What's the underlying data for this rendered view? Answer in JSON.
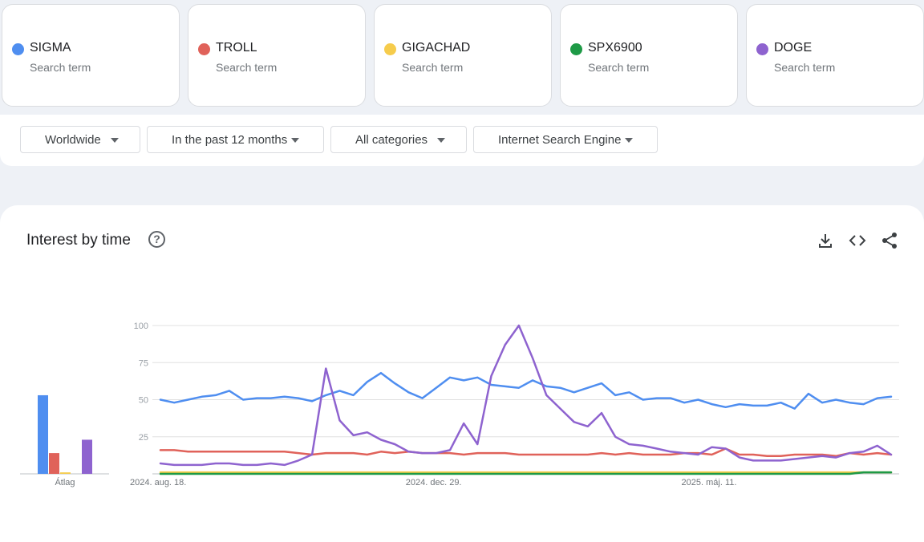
{
  "terms": [
    {
      "name": "SIGMA",
      "sub": "Search term",
      "color": "#4f8ef0"
    },
    {
      "name": "TROLL",
      "sub": "Search term",
      "color": "#e0625a"
    },
    {
      "name": "GIGACHAD",
      "sub": "Search term",
      "color": "#f6cc4c"
    },
    {
      "name": "SPX6900",
      "sub": "Search term",
      "color": "#1e9a46"
    },
    {
      "name": "DOGE",
      "sub": "Search term",
      "color": "#8e63cf"
    }
  ],
  "filters": {
    "region": "Worldwide",
    "time": "In the past 12 months",
    "category": "All categories",
    "source": "Internet Search Engine"
  },
  "panel": {
    "title": "Interest by time",
    "help": "?"
  },
  "chart_data": [
    {
      "type": "line",
      "title": "Interest by time",
      "x_ticks": [
        "2024. aug. 18.",
        "2024. dec. 29.",
        "2025. máj. 11."
      ],
      "x_tick_index": [
        0,
        20,
        40
      ],
      "y_ticks": [
        100,
        75,
        50,
        25
      ],
      "ylim": [
        0,
        100
      ],
      "grid": true,
      "series": [
        {
          "name": "SIGMA",
          "color": "#4f8ef0",
          "values": [
            50,
            48,
            50,
            52,
            53,
            56,
            50,
            51,
            51,
            52,
            51,
            49,
            53,
            56,
            53,
            62,
            68,
            61,
            55,
            51,
            58,
            65,
            63,
            65,
            60,
            59,
            58,
            63,
            59,
            58,
            55,
            58,
            61,
            53,
            55,
            50,
            51,
            51,
            48,
            50,
            47,
            45,
            47,
            46,
            46,
            48,
            44,
            54,
            48,
            50,
            48,
            47,
            51,
            52
          ]
        },
        {
          "name": "TROLL",
          "color": "#e0625a",
          "values": [
            16,
            16,
            15,
            15,
            15,
            15,
            15,
            15,
            15,
            15,
            14,
            13,
            14,
            14,
            14,
            13,
            15,
            14,
            15,
            14,
            14,
            14,
            13,
            14,
            14,
            14,
            13,
            13,
            13,
            13,
            13,
            13,
            14,
            13,
            14,
            13,
            13,
            13,
            14,
            14,
            13,
            17,
            13,
            13,
            12,
            12,
            13,
            13,
            13,
            12,
            14,
            13,
            14,
            13
          ]
        },
        {
          "name": "GIGACHAD",
          "color": "#f6cc4c",
          "values": [
            1,
            1,
            1,
            1,
            1,
            1,
            1,
            1,
            1,
            1,
            1,
            1,
            1,
            1,
            1,
            1,
            1,
            1,
            1,
            1,
            1,
            1,
            1,
            1,
            1,
            1,
            1,
            1,
            1,
            1,
            1,
            1,
            1,
            1,
            1,
            1,
            1,
            1,
            1,
            1,
            1,
            1,
            1,
            1,
            1,
            1,
            1,
            1,
            1,
            1,
            1,
            1,
            1,
            1
          ]
        },
        {
          "name": "SPX6900",
          "color": "#1e9a46",
          "values": [
            0,
            0,
            0,
            0,
            0,
            0,
            0,
            0,
            0,
            0,
            0,
            0,
            0,
            0,
            0,
            0,
            0,
            0,
            0,
            0,
            0,
            0,
            0,
            0,
            0,
            0,
            0,
            0,
            0,
            0,
            0,
            0,
            0,
            0,
            0,
            0,
            0,
            0,
            0,
            0,
            0,
            0,
            0,
            0,
            0,
            0,
            0,
            0,
            0,
            0,
            0,
            1,
            1,
            1
          ]
        },
        {
          "name": "DOGE",
          "color": "#8e63cf",
          "values": [
            7,
            6,
            6,
            6,
            7,
            7,
            6,
            6,
            7,
            6,
            9,
            13,
            71,
            36,
            26,
            28,
            23,
            20,
            15,
            14,
            14,
            16,
            34,
            20,
            66,
            87,
            100,
            78,
            53,
            44,
            35,
            32,
            41,
            25,
            20,
            19,
            17,
            15,
            14,
            13,
            18,
            17,
            11,
            9,
            9,
            9,
            10,
            11,
            12,
            11,
            14,
            15,
            19,
            13
          ]
        }
      ]
    },
    {
      "type": "bar",
      "title": "",
      "xlabel": "Átlag",
      "ylim": [
        0,
        100
      ],
      "categories": [
        "SIGMA",
        "TROLL",
        "GIGACHAD",
        "SPX6900",
        "DOGE"
      ],
      "colors": [
        "#4f8ef0",
        "#e0625a",
        "#f6cc4c",
        "#1e9a46",
        "#8e63cf"
      ],
      "values": [
        53,
        14,
        1,
        0,
        23
      ]
    }
  ]
}
